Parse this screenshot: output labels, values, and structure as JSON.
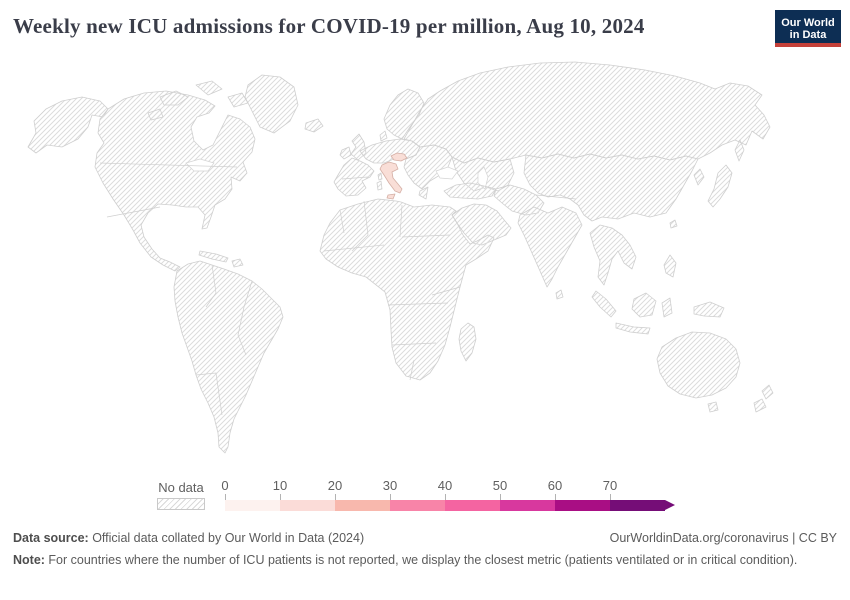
{
  "header": {
    "title": "Weekly new ICU admissions for COVID-19 per million, Aug 10, 2024",
    "logo": {
      "line1": "Our World",
      "line2": "in Data",
      "bg_color": "#0d2e54",
      "accent_color": "#c5413a"
    }
  },
  "chart_data": {
    "type": "choropleth_map",
    "title": "Weekly new ICU admissions for COVID-19 per million, Aug 10, 2024",
    "date": "Aug 10, 2024",
    "projection": "world",
    "legend": {
      "no_data_label": "No data",
      "bin_labels": [
        "0",
        "10",
        "20",
        "30",
        "40",
        "50",
        "60",
        "70"
      ],
      "bin_colors": [
        "#fdf2ef",
        "#fbdcd8",
        "#f8b8ad",
        "#f884a8",
        "#f464a1",
        "#d8389e",
        "#a90e84",
        "#750d77"
      ],
      "open_ended_arrow": true,
      "tick_color": "#b3b3b3",
      "label_color": "#5f5f5f"
    },
    "countries_with_data": [
      {
        "name": "Italy",
        "approx_value_bin": "0-10"
      },
      {
        "name": "Slovakia",
        "approx_value_bin": "0-10"
      }
    ],
    "all_other_countries": "No data (hatched)"
  },
  "map": {
    "hatch_color": "#dcdcdc",
    "border_color": "#cfcfcf",
    "highlight_fill": "#f9ded7",
    "highlight_stroke": "#d4afa5"
  },
  "footer": {
    "source_label": "Data source:",
    "source_text": " Official data collated by Our World in Data (2024)",
    "link_text": "OurWorldinData.org/coronavirus | CC BY",
    "note_label": "Note:",
    "note_text": " For countries where the number of ICU patients is not reported, we display the closest metric (patients ventilated or in critical condition)."
  }
}
